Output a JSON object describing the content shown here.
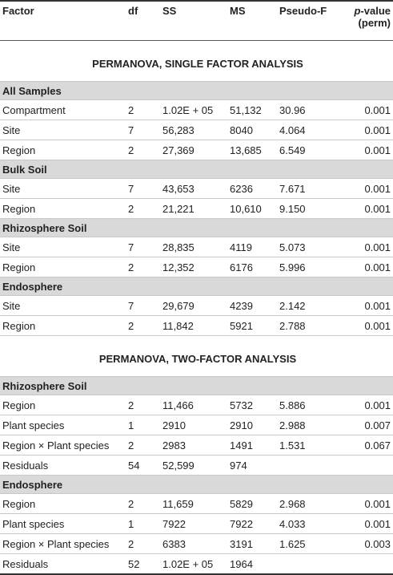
{
  "columns": {
    "factor": "Factor",
    "df": "df",
    "ss": "SS",
    "ms": "MS",
    "pseudo_f": "Pseudo-F",
    "p_label": "p",
    "p_suffix": "-value",
    "p_perm": "(perm)"
  },
  "single": {
    "title": "PERMANOVA, SINGLE FACTOR ANALYSIS",
    "groups": [
      {
        "name": "All Samples",
        "rows": [
          {
            "factor": "Compartment",
            "df": "2",
            "ss": "1.02E + 05",
            "ms": "51,132",
            "f": "30.96",
            "p": "0.001"
          },
          {
            "factor": "Site",
            "df": "7",
            "ss": "56,283",
            "ms": "8040",
            "f": "4.064",
            "p": "0.001"
          },
          {
            "factor": "Region",
            "df": "2",
            "ss": "27,369",
            "ms": "13,685",
            "f": "6.549",
            "p": "0.001"
          }
        ]
      },
      {
        "name": "Bulk Soil",
        "rows": [
          {
            "factor": "Site",
            "df": "7",
            "ss": "43,653",
            "ms": "6236",
            "f": "7.671",
            "p": "0.001"
          },
          {
            "factor": "Region",
            "df": "2",
            "ss": "21,221",
            "ms": "10,610",
            "f": "9.150",
            "p": "0.001"
          }
        ]
      },
      {
        "name": "Rhizosphere Soil",
        "rows": [
          {
            "factor": "Site",
            "df": "7",
            "ss": "28,835",
            "ms": "4119",
            "f": "5.073",
            "p": "0.001"
          },
          {
            "factor": "Region",
            "df": "2",
            "ss": "12,352",
            "ms": "6176",
            "f": "5.996",
            "p": "0.001"
          }
        ]
      },
      {
        "name": "Endosphere",
        "rows": [
          {
            "factor": "Site",
            "df": "7",
            "ss": "29,679",
            "ms": "4239",
            "f": "2.142",
            "p": "0.001"
          },
          {
            "factor": "Region",
            "df": "2",
            "ss": "11,842",
            "ms": "5921",
            "f": "2.788",
            "p": "0.001"
          }
        ]
      }
    ]
  },
  "two": {
    "title": "PERMANOVA, TWO-FACTOR ANALYSIS",
    "groups": [
      {
        "name": "Rhizosphere Soil",
        "rows": [
          {
            "factor": "Region",
            "df": "2",
            "ss": "11,466",
            "ms": "5732",
            "f": "5.886",
            "p": "0.001"
          },
          {
            "factor": "Plant species",
            "df": "1",
            "ss": "2910",
            "ms": "2910",
            "f": "2.988",
            "p": "0.007"
          },
          {
            "factor": "Region × Plant species",
            "df": "2",
            "ss": "2983",
            "ms": "1491",
            "f": "1.531",
            "p": "0.067"
          },
          {
            "factor": "Residuals",
            "df": "54",
            "ss": "52,599",
            "ms": "974",
            "f": "",
            "p": ""
          }
        ]
      },
      {
        "name": "Endosphere",
        "rows": [
          {
            "factor": "Region",
            "df": "2",
            "ss": "11,659",
            "ms": "5829",
            "f": "2.968",
            "p": "0.001"
          },
          {
            "factor": "Plant species",
            "df": "1",
            "ss": "7922",
            "ms": "7922",
            "f": "4.033",
            "p": "0.001"
          },
          {
            "factor": "Region × Plant species",
            "df": "2",
            "ss": "6383",
            "ms": "3191",
            "f": "1.625",
            "p": "0.003"
          },
          {
            "factor": "Residuals",
            "df": "52",
            "ss": "1.02E + 05",
            "ms": "1964",
            "f": "",
            "p": ""
          }
        ]
      }
    ]
  }
}
